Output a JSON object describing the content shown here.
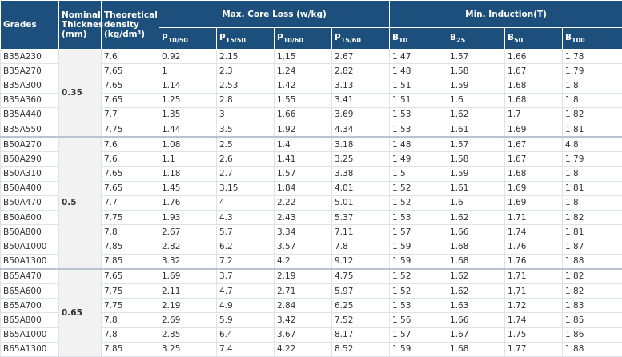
{
  "header": {
    "grades": "Grades",
    "thickness": "Nominal Thicknes (mm)",
    "density": "Theoretical density (kg/dm³)",
    "core_loss": "Max. Core Loss (w/kg)",
    "induction": "Min. Induction(T)",
    "core_loss_cols": [
      {
        "symbol": "P",
        "sub": "10/50"
      },
      {
        "symbol": "P",
        "sub": "15/50"
      },
      {
        "symbol": "P",
        "sub": "10/60"
      },
      {
        "symbol": "P",
        "sub": "15/60"
      }
    ],
    "induction_cols": [
      {
        "symbol": "B",
        "sub": "10"
      },
      {
        "symbol": "B",
        "sub": "25"
      },
      {
        "symbol": "B",
        "sub": "50"
      },
      {
        "symbol": "B",
        "sub": "100"
      }
    ]
  },
  "groups": [
    {
      "thickness": 0.35,
      "rows": [
        [
          "B35A230",
          7.6,
          0.92,
          2.15,
          1.15,
          2.67,
          1.47,
          1.57,
          1.66,
          1.78
        ],
        [
          "B35A270",
          7.65,
          1,
          2.3,
          1.24,
          2.82,
          1.48,
          1.58,
          1.67,
          1.79
        ],
        [
          "B35A300",
          7.65,
          1.14,
          2.53,
          1.42,
          3.13,
          1.51,
          1.59,
          1.68,
          1.8
        ],
        [
          "B35A360",
          7.65,
          1.25,
          2.8,
          1.55,
          3.41,
          1.51,
          1.6,
          1.68,
          1.8
        ],
        [
          "B35A440",
          7.7,
          1.35,
          3,
          1.66,
          3.69,
          1.53,
          1.62,
          1.7,
          1.82
        ],
        [
          "B35A550",
          7.75,
          1.44,
          3.5,
          1.92,
          4.34,
          1.53,
          1.61,
          1.69,
          1.81
        ]
      ]
    },
    {
      "thickness": 0.5,
      "rows": [
        [
          "B50A270",
          7.6,
          1.08,
          2.5,
          1.4,
          3.18,
          1.48,
          1.57,
          1.67,
          4.8
        ],
        [
          "B50A290",
          7.6,
          1.1,
          2.6,
          1.41,
          3.25,
          1.49,
          1.58,
          1.67,
          1.79
        ],
        [
          "B50A310",
          7.65,
          1.18,
          2.7,
          1.57,
          3.38,
          1.5,
          1.59,
          1.68,
          1.8
        ],
        [
          "B50A400",
          7.65,
          1.45,
          3.15,
          1.84,
          4.01,
          1.52,
          1.61,
          1.69,
          1.81
        ],
        [
          "B50A470",
          7.7,
          1.76,
          4,
          2.22,
          5.01,
          1.52,
          1.6,
          1.69,
          1.8
        ],
        [
          "B50A600",
          7.75,
          1.93,
          4.3,
          2.43,
          5.37,
          1.53,
          1.62,
          1.71,
          1.82
        ],
        [
          "B50A800",
          7.8,
          2.67,
          5.7,
          3.34,
          7.11,
          1.57,
          1.66,
          1.74,
          1.81
        ],
        [
          "B50A1000",
          7.85,
          2.82,
          6.2,
          3.57,
          7.8,
          1.59,
          1.68,
          1.76,
          1.87
        ],
        [
          "B50A1300",
          7.85,
          3.32,
          7.2,
          4.2,
          9.12,
          1.59,
          1.68,
          1.76,
          1.88
        ]
      ]
    },
    {
      "thickness": 0.65,
      "rows": [
        [
          "B65A470",
          7.65,
          1.69,
          3.7,
          2.19,
          4.75,
          1.52,
          1.62,
          1.71,
          1.82
        ],
        [
          "B65A600",
          7.75,
          2.11,
          4.7,
          2.71,
          5.97,
          1.52,
          1.62,
          1.71,
          1.82
        ],
        [
          "B65A700",
          7.75,
          2.19,
          4.9,
          2.84,
          6.25,
          1.53,
          1.63,
          1.72,
          1.83
        ],
        [
          "B65A800",
          7.8,
          2.69,
          5.9,
          3.42,
          7.52,
          1.56,
          1.66,
          1.74,
          1.85
        ],
        [
          "B65A1000",
          7.8,
          2.85,
          6.4,
          3.67,
          8.17,
          1.57,
          1.67,
          1.75,
          1.86
        ],
        [
          "B65A1300",
          7.85,
          3.25,
          7.4,
          4.22,
          8.52,
          1.59,
          1.68,
          1.77,
          1.88
        ]
      ]
    }
  ]
}
